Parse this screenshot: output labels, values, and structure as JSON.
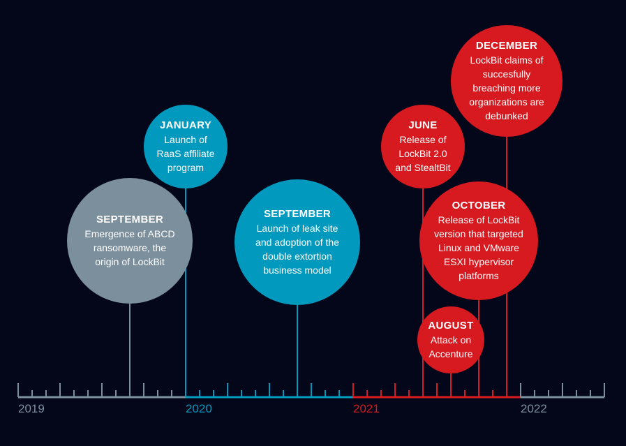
{
  "colors": {
    "background": "#04071a",
    "gray": "#7b8f9d",
    "blue": "#0199bd",
    "red": "#d71920"
  },
  "years": [
    {
      "label": "2019",
      "color": "gray"
    },
    {
      "label": "2020",
      "color": "blue"
    },
    {
      "label": "2021",
      "color": "red"
    },
    {
      "label": "2022",
      "color": "gray"
    }
  ],
  "events": [
    {
      "month": "SEPTEMBER",
      "year": 2019,
      "description": "Emergence of ABCD ransomware, the origin of LockBit",
      "color": "gray"
    },
    {
      "month": "JANUARY",
      "year": 2020,
      "description": "Launch of RaaS affiliate program",
      "color": "blue"
    },
    {
      "month": "SEPTEMBER",
      "year": 2020,
      "description": "Launch of leak site and adoption of the double extortion business model",
      "color": "blue"
    },
    {
      "month": "JUNE",
      "year": 2021,
      "description": "Release of LockBit 2.0 and StealtBit",
      "color": "red"
    },
    {
      "month": "AUGUST",
      "year": 2021,
      "description": "Attack on Accenture",
      "color": "red"
    },
    {
      "month": "OCTOBER",
      "year": 2021,
      "description": "Release of LockBit version that targeted Linux and VMware ESXI hypervisor platforms",
      "color": "red"
    },
    {
      "month": "DECEMBER",
      "year": 2021,
      "description": "LockBit claims of succesfully breaching more organizations are debunked",
      "color": "red"
    }
  ]
}
